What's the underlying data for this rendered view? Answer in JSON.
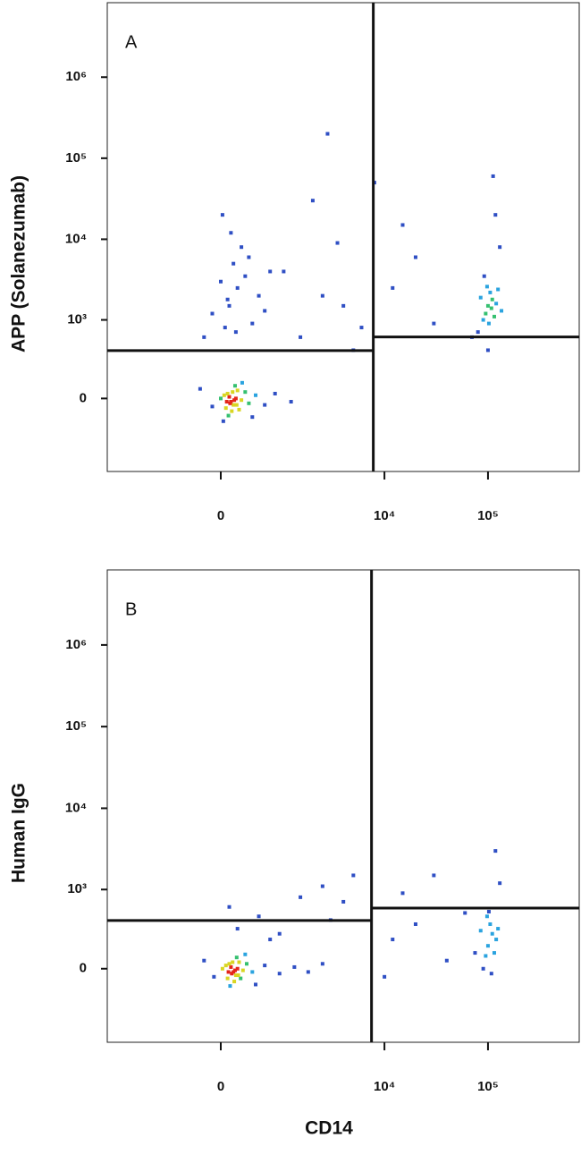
{
  "chart_data": [
    {
      "type": "scatter",
      "panel_label": "A",
      "y_label": "APP (Solanezumab)",
      "xscale": "arcsinh",
      "yscale": "arcsinh",
      "xlim": [
        -3260,
        760000
      ],
      "ylim": [
        -850,
        8300000
      ],
      "xticks": [
        0,
        {
          "value": 10000,
          "label": "10⁴"
        },
        {
          "value": 100000,
          "label": "10⁵"
        }
      ],
      "yticks": [
        0,
        {
          "value": 1000,
          "label": "10³"
        },
        {
          "value": 10000,
          "label": "10⁴"
        },
        {
          "value": 100000,
          "label": "10⁵"
        },
        {
          "value": 1000000,
          "label": "10⁶"
        }
      ],
      "gates": {
        "x": 7800,
        "y_left": 395,
        "y_right": 605
      },
      "x": [
        120,
        100,
        150,
        80,
        180,
        60,
        200,
        130,
        40,
        250,
        90,
        170,
        0,
        300,
        220,
        140,
        110,
        160,
        70,
        190,
        -100,
        350,
        450,
        600,
        800,
        1200,
        -250,
        400,
        260,
        30,
        100,
        200,
        50,
        300,
        150,
        -100,
        400,
        250,
        0,
        120,
        500,
        -200,
        350,
        80,
        180,
        600,
        20,
        700,
        1500,
        2500,
        3500,
        5000,
        2000,
        4000,
        1000,
        6000,
        12000,
        20000,
        30000,
        15000,
        8000,
        2800,
        100000,
        110000,
        95000,
        105000,
        90000,
        120000,
        98000,
        115000,
        85000,
        108000,
        102000,
        125000,
        92000,
        130000,
        80000,
        118000,
        70000,
        100000,
        135000,
        112000
      ],
      "values": [
        -20,
        10,
        -40,
        30,
        0,
        -60,
        50,
        -80,
        20,
        -10,
        -110,
        80,
        0,
        40,
        -70,
        40,
        -30,
        -10,
        -20,
        -40,
        -50,
        -30,
        20,
        -40,
        30,
        -20,
        60,
        -120,
        100,
        -150,
        1500,
        2500,
        800,
        3500,
        5000,
        1200,
        900,
        8000,
        3000,
        12000,
        2000,
        600,
        6000,
        1800,
        700,
        1300,
        20000,
        4000,
        600,
        2000,
        9000,
        400,
        30000,
        1500,
        4000,
        800,
        2500,
        6000,
        900,
        15000,
        50000,
        200000,
        1500,
        1800,
        1200,
        2200,
        1000,
        1600,
        2600,
        1100,
        1900,
        1400,
        900,
        2400,
        3500,
        8000,
        700,
        20000,
        600,
        400,
        1300,
        60000
      ]
    },
    {
      "type": "scatter",
      "panel_label": "B",
      "y_label": "Human IgG",
      "x_label": "CD14",
      "xscale": "arcsinh",
      "yscale": "arcsinh",
      "xlim": [
        -3260,
        760000
      ],
      "ylim": [
        -850,
        8300000
      ],
      "xticks": [
        0,
        {
          "value": 10000,
          "label": "10⁴"
        },
        {
          "value": 100000,
          "label": "10⁵"
        }
      ],
      "yticks": [
        0,
        {
          "value": 1000,
          "label": "10³"
        },
        {
          "value": 10000,
          "label": "10⁴"
        },
        {
          "value": 100000,
          "label": "10⁵"
        },
        {
          "value": 1000000,
          "label": "10⁶"
        }
      ],
      "gates": {
        "x": 7500,
        "y_left": 395,
        "y_right": 580
      },
      "x": [
        150,
        120,
        180,
        100,
        200,
        80,
        220,
        160,
        60,
        270,
        110,
        190,
        20,
        320,
        240,
        140,
        130,
        170,
        90,
        210,
        -80,
        400,
        600,
        900,
        1300,
        1800,
        2500,
        -200,
        450,
        300,
        200,
        500,
        100,
        900,
        1500,
        3000,
        5000,
        2500,
        700,
        4000,
        100000,
        110000,
        95000,
        105000,
        90000,
        120000,
        98000,
        115000,
        85000,
        108000,
        102000,
        125000,
        130000,
        75000,
        118000,
        60000,
        40000,
        20000,
        12000,
        15000,
        30000,
        10000
      ],
      "values": [
        -20,
        10,
        -40,
        30,
        0,
        -60,
        40,
        -80,
        20,
        -10,
        -110,
        70,
        0,
        30,
        -60,
        40,
        -30,
        -10,
        -20,
        -40,
        -50,
        -20,
        20,
        -30,
        10,
        -20,
        30,
        50,
        -100,
        90,
        300,
        450,
        600,
        250,
        800,
        400,
        1500,
        1100,
        200,
        700,
        150,
        250,
        80,
        350,
        0,
        200,
        450,
        100,
        280,
        -30,
        520,
        300,
        1200,
        100,
        3000,
        500,
        50,
        350,
        200,
        900,
        1500,
        -50
      ]
    }
  ]
}
